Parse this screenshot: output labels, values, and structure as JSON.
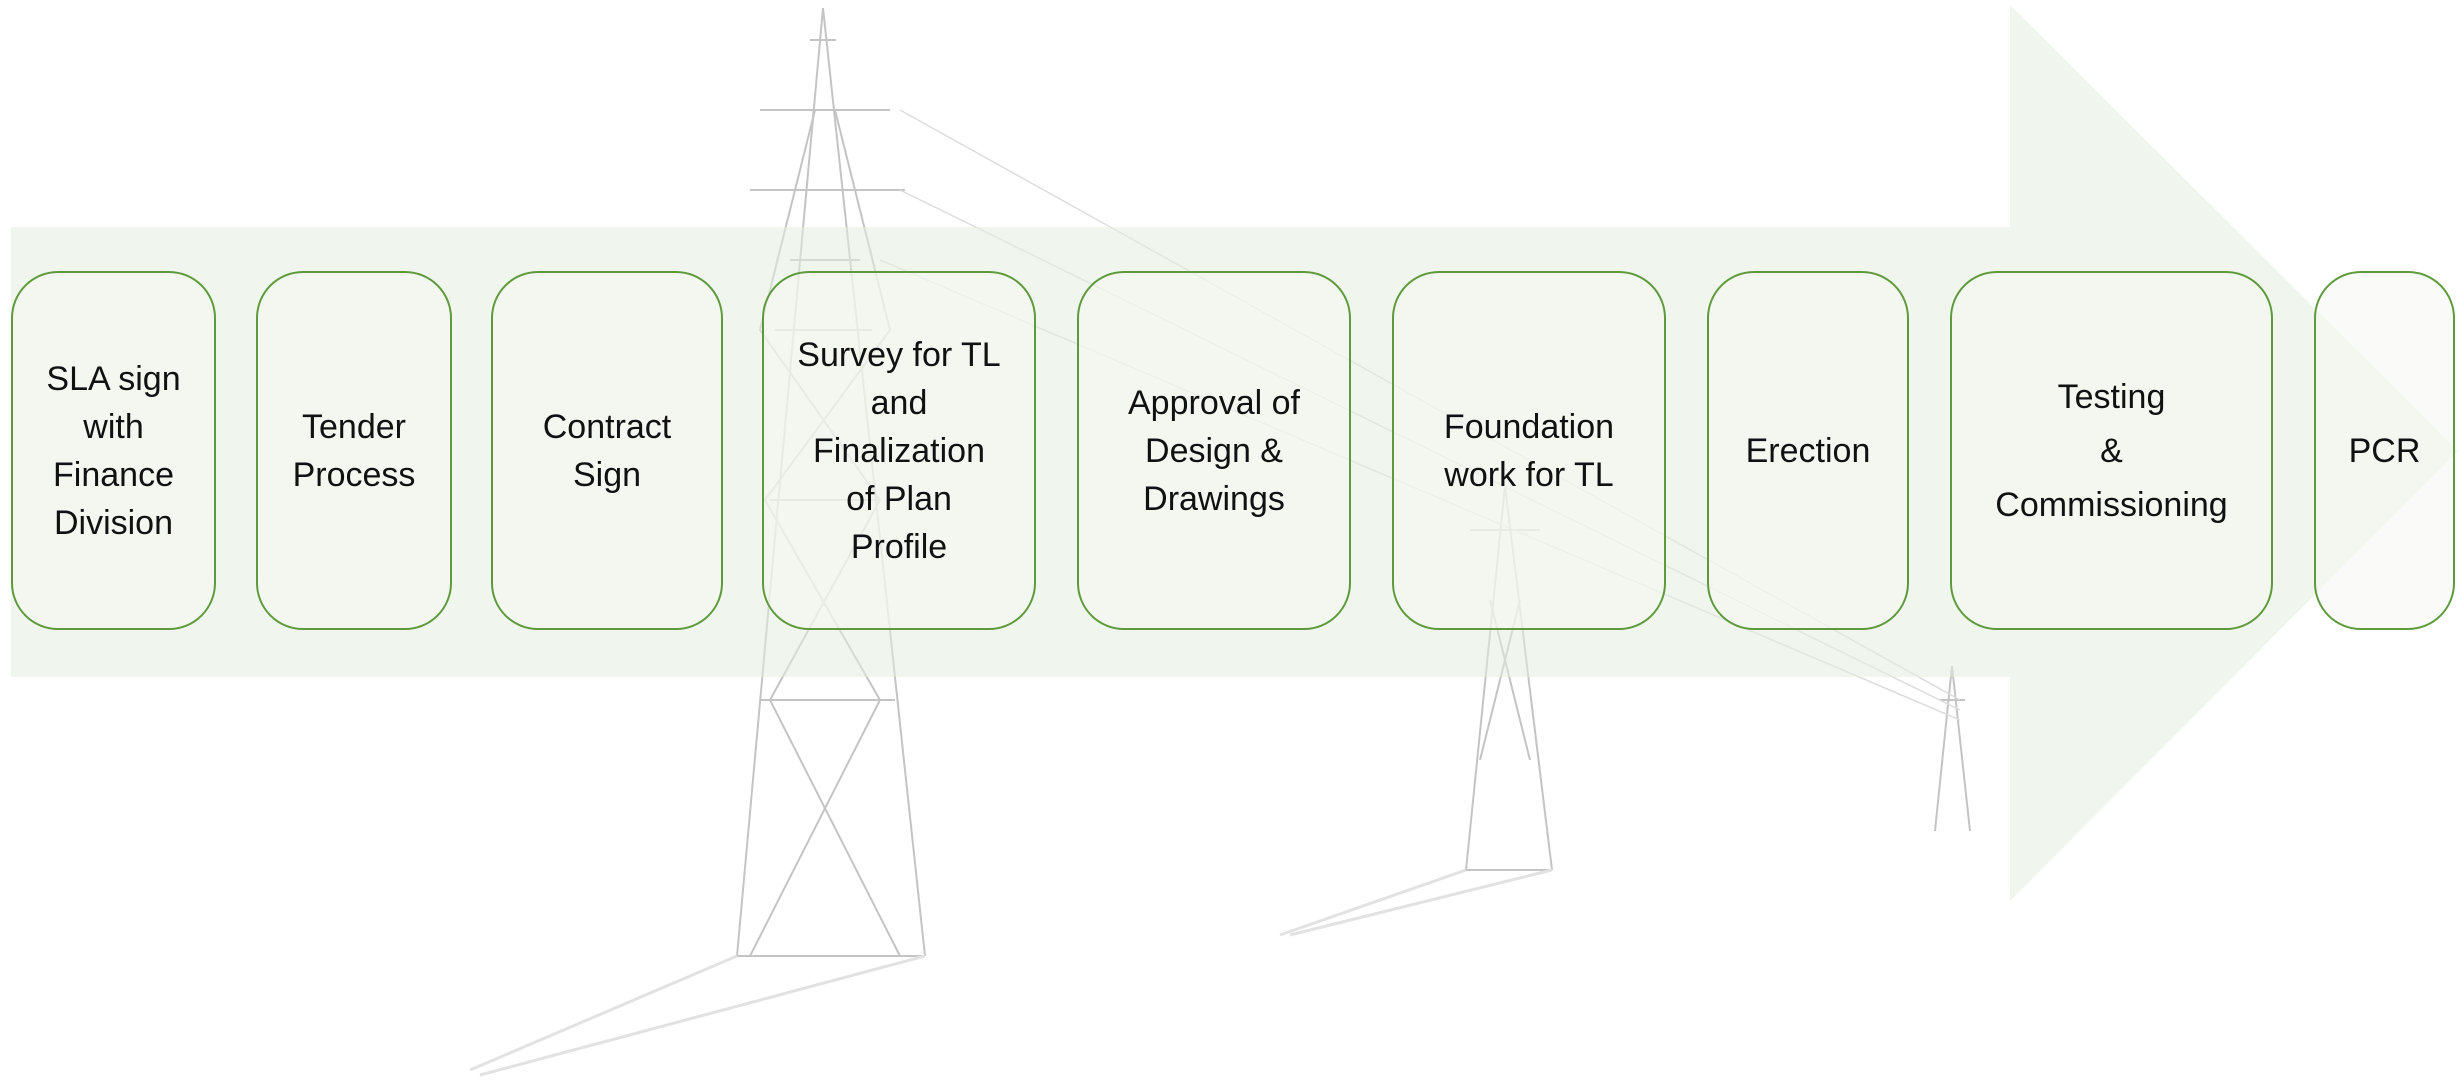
{
  "nodes": [
    {
      "lines": [
        "SLA sign",
        "with",
        "Finance",
        "Division"
      ]
    },
    {
      "lines": [
        "Tender",
        "Process"
      ]
    },
    {
      "lines": [
        "Contract",
        "Sign"
      ]
    },
    {
      "lines": [
        "Survey for TL",
        "and",
        "Finalization",
        "of Plan",
        "Profile"
      ]
    },
    {
      "lines": [
        "Approval of",
        "Design &",
        "Drawings"
      ]
    },
    {
      "lines": [
        "Foundation",
        "work for TL"
      ]
    },
    {
      "lines": [
        "Erection"
      ]
    },
    {
      "lines": [
        "Testing",
        "&",
        "Commissioning"
      ]
    },
    {
      "lines": [
        "PCR"
      ]
    }
  ]
}
